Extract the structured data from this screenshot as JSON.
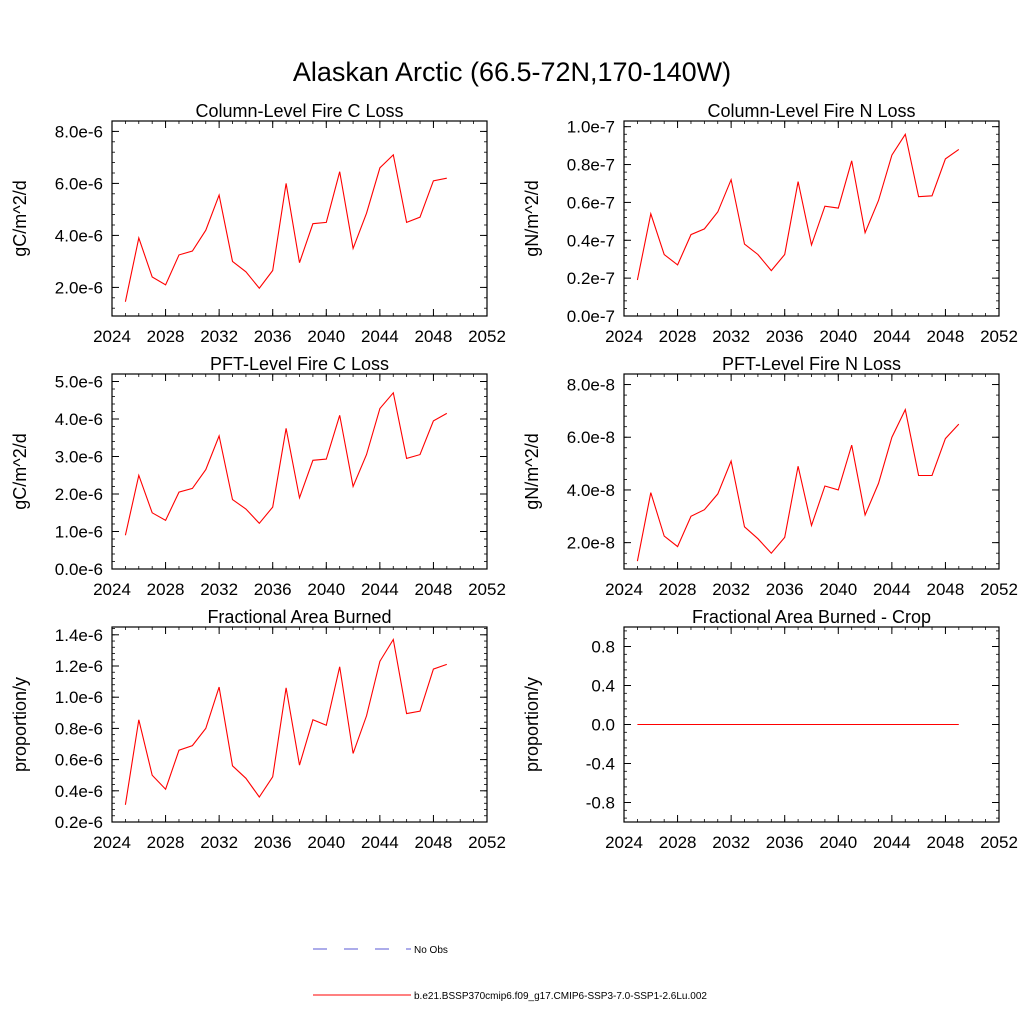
{
  "figure": {
    "title": "Alaskan Arctic (66.5-72N,170-140W)",
    "colors": {
      "model": "#ff0000",
      "obs": "#5a5ad6",
      "axis": "#000000"
    }
  },
  "legend": {
    "entries": [
      {
        "label": "No Obs",
        "style": "dashed",
        "color": "#5a5ad6"
      },
      {
        "label": "b.e21.BSSP370cmip6.f09_g17.CMIP6-SSP3-7.0-SSP1-2.6Lu.002",
        "style": "solid",
        "color": "#ff0000"
      }
    ]
  },
  "chart_data": [
    {
      "type": "line",
      "title": "Column-Level Fire C Loss",
      "ylabel": "gC/m^2/d",
      "xlim": [
        2024,
        2052
      ],
      "ylim": [
        9e-07,
        8.4e-06
      ],
      "x_ticks": [
        2024,
        2028,
        2032,
        2036,
        2040,
        2044,
        2048,
        2052
      ],
      "x_tick_labels": [
        "2024",
        "2028",
        "2032",
        "2036",
        "2040",
        "2044",
        "2048",
        "2052"
      ],
      "y_ticks": [
        2e-06,
        4e-06,
        6e-06,
        8e-06
      ],
      "y_tick_labels": [
        "2.0e-6",
        "4.0e-6",
        "6.0e-6",
        "8.0e-6"
      ],
      "x": [
        2025,
        2026,
        2027,
        2028,
        2029,
        2030,
        2031,
        2032,
        2033,
        2034,
        2035,
        2036,
        2037,
        2038,
        2039,
        2040,
        2041,
        2042,
        2043,
        2044,
        2045,
        2046,
        2047,
        2048,
        2049
      ],
      "series": [
        {
          "values": [
            1.45e-06,
            3.9e-06,
            2.4e-06,
            2.1e-06,
            3.25e-06,
            3.4e-06,
            4.2e-06,
            5.55e-06,
            3e-06,
            2.6e-06,
            1.97e-06,
            2.65e-06,
            6e-06,
            2.95e-06,
            4.45e-06,
            4.5e-06,
            6.45e-06,
            3.5e-06,
            4.85e-06,
            6.6e-06,
            7.1e-06,
            4.5e-06,
            4.7e-06,
            6.1e-06,
            6.2e-06
          ]
        }
      ]
    },
    {
      "type": "line",
      "title": "Column-Level Fire N Loss",
      "ylabel": "gN/m^2/d",
      "xlim": [
        2024,
        2052
      ],
      "ylim": [
        0,
        1.03e-07
      ],
      "x_ticks": [
        2024,
        2028,
        2032,
        2036,
        2040,
        2044,
        2048,
        2052
      ],
      "x_tick_labels": [
        "2024",
        "2028",
        "2032",
        "2036",
        "2040",
        "2044",
        "2048",
        "2052"
      ],
      "y_ticks": [
        0,
        2e-08,
        4e-08,
        6e-08,
        8e-08,
        1e-07
      ],
      "y_tick_labels": [
        "0.0e-7",
        "0.2e-7",
        "0.4e-7",
        "0.6e-7",
        "0.8e-7",
        "1.0e-7"
      ],
      "x": [
        2025,
        2026,
        2027,
        2028,
        2029,
        2030,
        2031,
        2032,
        2033,
        2034,
        2035,
        2036,
        2037,
        2038,
        2039,
        2040,
        2041,
        2042,
        2043,
        2044,
        2045,
        2046,
        2047,
        2048,
        2049
      ],
      "series": [
        {
          "values": [
            1.9e-08,
            5.4e-08,
            3.25e-08,
            2.7e-08,
            4.3e-08,
            4.6e-08,
            5.5e-08,
            7.2e-08,
            3.8e-08,
            3.25e-08,
            2.4e-08,
            3.25e-08,
            7.1e-08,
            3.75e-08,
            5.8e-08,
            5.7e-08,
            8.2e-08,
            4.4e-08,
            6.1e-08,
            8.5e-08,
            9.6e-08,
            6.3e-08,
            6.35e-08,
            8.3e-08,
            8.8e-08
          ]
        }
      ]
    },
    {
      "type": "line",
      "title": "PFT-Level Fire C Loss",
      "ylabel": "gC/m^2/d",
      "xlim": [
        2024,
        2052
      ],
      "ylim": [
        0,
        5.2e-06
      ],
      "x_ticks": [
        2024,
        2028,
        2032,
        2036,
        2040,
        2044,
        2048,
        2052
      ],
      "x_tick_labels": [
        "2024",
        "2028",
        "2032",
        "2036",
        "2040",
        "2044",
        "2048",
        "2052"
      ],
      "y_ticks": [
        0,
        1e-06,
        2e-06,
        3e-06,
        4e-06,
        5e-06
      ],
      "y_tick_labels": [
        "0.0e-6",
        "1.0e-6",
        "2.0e-6",
        "3.0e-6",
        "4.0e-6",
        "5.0e-6"
      ],
      "x": [
        2025,
        2026,
        2027,
        2028,
        2029,
        2030,
        2031,
        2032,
        2033,
        2034,
        2035,
        2036,
        2037,
        2038,
        2039,
        2040,
        2041,
        2042,
        2043,
        2044,
        2045,
        2046,
        2047,
        2048,
        2049
      ],
      "series": [
        {
          "values": [
            9e-07,
            2.5e-06,
            1.5e-06,
            1.3e-06,
            2.05e-06,
            2.15e-06,
            2.65e-06,
            3.55e-06,
            1.85e-06,
            1.6e-06,
            1.22e-06,
            1.65e-06,
            3.75e-06,
            1.9e-06,
            2.9e-06,
            2.93e-06,
            4.1e-06,
            2.2e-06,
            3.05e-06,
            4.28e-06,
            4.7e-06,
            2.95e-06,
            3.05e-06,
            3.95e-06,
            4.15e-06
          ]
        }
      ]
    },
    {
      "type": "line",
      "title": "PFT-Level Fire N Loss",
      "ylabel": "gN/m^2/d",
      "xlim": [
        2024,
        2052
      ],
      "ylim": [
        1e-08,
        8.4e-08
      ],
      "x_ticks": [
        2024,
        2028,
        2032,
        2036,
        2040,
        2044,
        2048,
        2052
      ],
      "x_tick_labels": [
        "2024",
        "2028",
        "2032",
        "2036",
        "2040",
        "2044",
        "2048",
        "2052"
      ],
      "y_ticks": [
        2e-08,
        4e-08,
        6e-08,
        8e-08
      ],
      "y_tick_labels": [
        "2.0e-8",
        "4.0e-8",
        "6.0e-8",
        "8.0e-8"
      ],
      "x": [
        2025,
        2026,
        2027,
        2028,
        2029,
        2030,
        2031,
        2032,
        2033,
        2034,
        2035,
        2036,
        2037,
        2038,
        2039,
        2040,
        2041,
        2042,
        2043,
        2044,
        2045,
        2046,
        2047,
        2048,
        2049
      ],
      "series": [
        {
          "values": [
            1.3e-08,
            3.9e-08,
            2.25e-08,
            1.85e-08,
            3e-08,
            3.25e-08,
            3.85e-08,
            5.1e-08,
            2.6e-08,
            2.15e-08,
            1.6e-08,
            2.2e-08,
            4.9e-08,
            2.65e-08,
            4.15e-08,
            4e-08,
            5.7e-08,
            3.05e-08,
            4.25e-08,
            6e-08,
            7.05e-08,
            4.55e-08,
            4.55e-08,
            5.95e-08,
            6.5e-08
          ]
        }
      ]
    },
    {
      "type": "line",
      "title": "Fractional Area Burned",
      "ylabel": "proportion/y",
      "xlim": [
        2024,
        2052
      ],
      "ylim": [
        2e-07,
        1.45e-06
      ],
      "x_ticks": [
        2024,
        2028,
        2032,
        2036,
        2040,
        2044,
        2048,
        2052
      ],
      "x_tick_labels": [
        "2024",
        "2028",
        "2032",
        "2036",
        "2040",
        "2044",
        "2048",
        "2052"
      ],
      "y_ticks": [
        2e-07,
        4e-07,
        6e-07,
        8e-07,
        1e-06,
        1.2e-06,
        1.4e-06
      ],
      "y_tick_labels": [
        "0.2e-6",
        "0.4e-6",
        "0.6e-6",
        "0.8e-6",
        "1.0e-6",
        "1.2e-6",
        "1.4e-6"
      ],
      "x": [
        2025,
        2026,
        2027,
        2028,
        2029,
        2030,
        2031,
        2032,
        2033,
        2034,
        2035,
        2036,
        2037,
        2038,
        2039,
        2040,
        2041,
        2042,
        2043,
        2044,
        2045,
        2046,
        2047,
        2048,
        2049
      ],
      "series": [
        {
          "values": [
            3.1e-07,
            8.55e-07,
            5e-07,
            4.1e-07,
            6.6e-07,
            6.9e-07,
            8e-07,
            1.065e-06,
            5.6e-07,
            4.8e-07,
            3.6e-07,
            4.9e-07,
            1.06e-06,
            5.65e-07,
            8.55e-07,
            8.2e-07,
            1.195e-06,
            6.4e-07,
            8.8e-07,
            1.23e-06,
            1.37e-06,
            8.95e-07,
            9.1e-07,
            1.18e-06,
            1.21e-06
          ]
        }
      ]
    },
    {
      "type": "line",
      "title": "Fractional Area Burned - Crop",
      "ylabel": "proportion/y",
      "xlim": [
        2024,
        2052
      ],
      "ylim": [
        -1.0,
        1.0
      ],
      "x_ticks": [
        2024,
        2028,
        2032,
        2036,
        2040,
        2044,
        2048,
        2052
      ],
      "x_tick_labels": [
        "2024",
        "2028",
        "2032",
        "2036",
        "2040",
        "2044",
        "2048",
        "2052"
      ],
      "y_ticks": [
        -0.8,
        -0.4,
        0.0,
        0.4,
        0.8
      ],
      "y_tick_labels": [
        "-0.8",
        "-0.4",
        "0.0",
        "0.4",
        "0.8"
      ],
      "x": [
        2025,
        2026,
        2027,
        2028,
        2029,
        2030,
        2031,
        2032,
        2033,
        2034,
        2035,
        2036,
        2037,
        2038,
        2039,
        2040,
        2041,
        2042,
        2043,
        2044,
        2045,
        2046,
        2047,
        2048,
        2049
      ],
      "series": [
        {
          "values": [
            0,
            0,
            0,
            0,
            0,
            0,
            0,
            0,
            0,
            0,
            0,
            0,
            0,
            0,
            0,
            0,
            0,
            0,
            0,
            0,
            0,
            0,
            0,
            0,
            0
          ]
        }
      ]
    }
  ]
}
